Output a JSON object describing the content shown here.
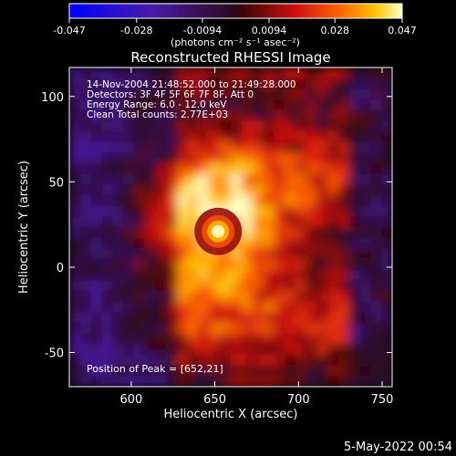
{
  "chart_data": {
    "type": "heatmap",
    "title": "Reconstructed RHESSI Image",
    "xlabel": "Heliocentric X (arcsec)",
    "ylabel": "Heliocentric Y (arcsec)",
    "xlim": [
      563,
      756
    ],
    "ylim": [
      -70,
      117
    ],
    "x_ticks": [
      "600",
      "650",
      "700",
      "750"
    ],
    "y_ticks": [
      "100",
      "50",
      "0",
      "-50"
    ],
    "x_tick_values": [
      600,
      650,
      700,
      750
    ],
    "y_tick_values": [
      100,
      50,
      0,
      -50
    ],
    "colorbar": {
      "min": -0.047,
      "max": 0.047,
      "ticks": [
        "-0.047",
        "-0.028",
        "-0.0094",
        "0.0094",
        "0.028",
        "0.047"
      ],
      "tick_values": [
        -0.047,
        -0.028,
        -0.0094,
        0.0094,
        0.028,
        0.047
      ],
      "unit_label": "(photons cm⁻² s⁻¹ asec⁻²)"
    },
    "annotations": [
      "14-Nov-2004 21:48:52.000 to 21:49:28.000",
      "Detectors: 3F 4F 5F 6F 7F 8F, Att 0",
      "Energy Range: 6.0 - 12.0 keV",
      "Clean     Total counts: 2.77E+03"
    ],
    "peak_label": "Position of Peak = [652,21]",
    "peak": {
      "x": 652,
      "y": 21,
      "value": 0.047
    }
  },
  "footer": {
    "date": "5-May-2022 00:54"
  }
}
